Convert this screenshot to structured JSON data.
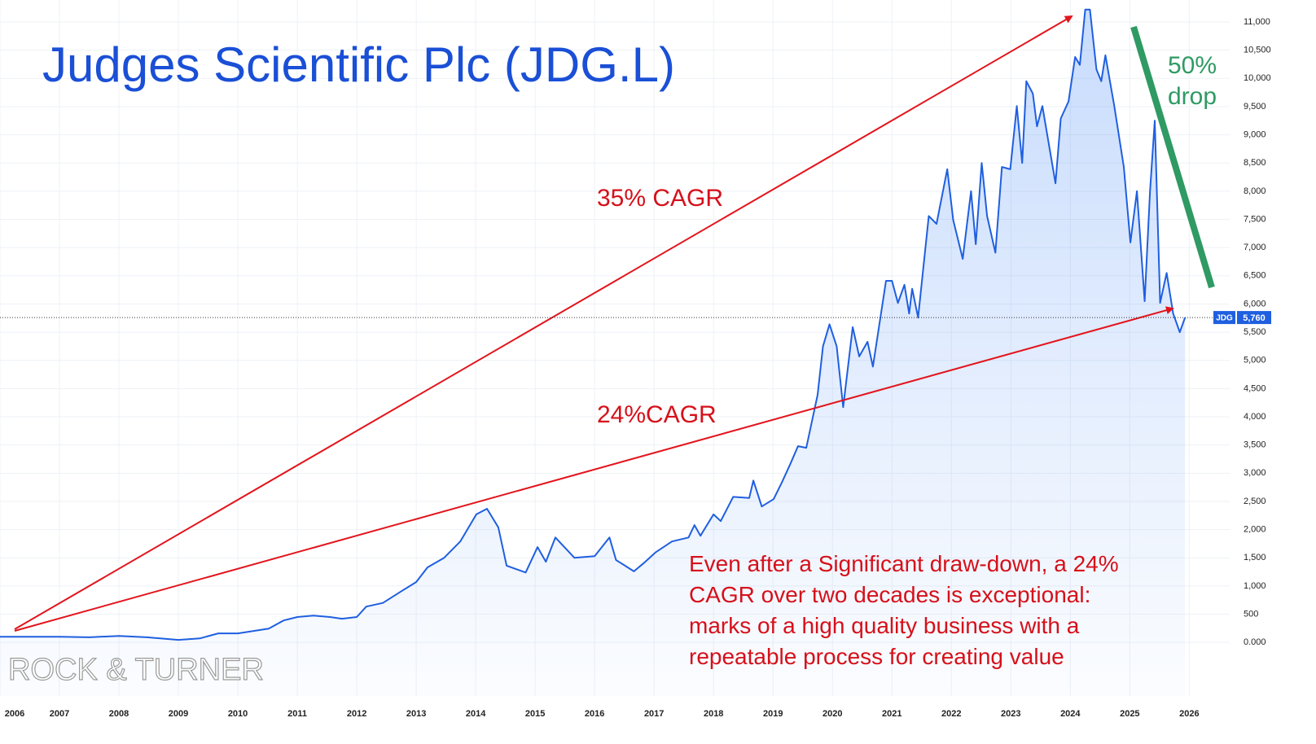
{
  "chart_data": {
    "type": "area-line",
    "title": "Judges Scientific Plc (JDG.L)",
    "annotations": {
      "upper": "35% CAGR",
      "lower": "24%CAGR",
      "drop": [
        "50%",
        "drop"
      ],
      "note": [
        "Even after a Significant draw-down, a 24%",
        "CAGR over two decades is exceptional:",
        "marks of a high quality business with a",
        "repeatable process for creating value"
      ],
      "watermark": "ROCK & TURNER"
    },
    "color": "#1f5fe0",
    "grid": true,
    "xlim": [
      2006,
      2026.68
    ],
    "xticks": [
      2006,
      2007,
      2008,
      2009,
      2010,
      2011,
      2012,
      2013,
      2014,
      2015,
      2016,
      2017,
      2018,
      2019,
      2020,
      2021,
      2022,
      2023,
      2024,
      2025,
      2026
    ],
    "ylim": [
      -950,
      11390
    ],
    "yticks": [
      {
        "value": 0,
        "label": "0.000"
      },
      500,
      {
        "value": 1000,
        "label": "1,000"
      },
      {
        "value": 1500,
        "label": "1,500"
      },
      {
        "value": 2000,
        "label": "2,000"
      },
      {
        "value": 2500,
        "label": "2,500"
      },
      {
        "value": 3000,
        "label": "3,000"
      },
      {
        "value": 3500,
        "label": "3,500"
      },
      {
        "value": 4000,
        "label": "4,000"
      },
      {
        "value": 4500,
        "label": "4,500"
      },
      {
        "value": 5000,
        "label": "5,000"
      },
      {
        "value": 5500,
        "label": "5,500"
      },
      {
        "value": 6000,
        "label": "6,000"
      },
      {
        "value": 6500,
        "label": "6,500"
      },
      {
        "value": 7000,
        "label": "7,000"
      },
      {
        "value": 7500,
        "label": "7,500"
      },
      {
        "value": 8000,
        "label": "8,000"
      },
      {
        "value": 8500,
        "label": "8,500"
      },
      {
        "value": 9000,
        "label": "9,000"
      },
      {
        "value": 9500,
        "label": "9,500"
      },
      {
        "value": 10000,
        "label": "10,000"
      },
      {
        "value": 10500,
        "label": "10,500"
      },
      {
        "value": 11000,
        "label": "11,000"
      }
    ],
    "price_label": {
      "symbol": "JDG",
      "value": 5760,
      "label": "5,760"
    },
    "x": [
      2006.0,
      2007.0,
      2007.5,
      2008.0,
      2008.47,
      2009.0,
      2009.36,
      2009.67,
      2010.0,
      2010.52,
      2010.77,
      2011.0,
      2011.27,
      2011.55,
      2011.75,
      2012.0,
      2012.16,
      2012.44,
      2012.71,
      2013.0,
      2013.19,
      2013.47,
      2013.74,
      2014.01,
      2014.19,
      2014.38,
      2014.52,
      2014.84,
      2015.04,
      2015.18,
      2015.34,
      2015.66,
      2016.0,
      2016.25,
      2016.36,
      2016.66,
      2016.82,
      2017.03,
      2017.3,
      2017.58,
      2017.68,
      2017.78,
      2018.0,
      2018.12,
      2018.33,
      2018.6,
      2018.67,
      2018.81,
      2019.01,
      2019.15,
      2019.29,
      2019.42,
      2019.56,
      2019.75,
      2019.84,
      2019.95,
      2020.07,
      2020.18,
      2020.34,
      2020.45,
      2020.59,
      2020.68,
      2020.9,
      2021.0,
      2021.1,
      2021.21,
      2021.29,
      2021.34,
      2021.44,
      2021.62,
      2021.75,
      2021.93,
      2022.03,
      2022.19,
      2022.33,
      2022.41,
      2022.51,
      2022.6,
      2022.74,
      2022.85,
      2022.99,
      2023.1,
      2023.19,
      2023.26,
      2023.37,
      2023.44,
      2023.53,
      2023.75,
      2023.84,
      2023.97,
      2024.08,
      2024.16,
      2024.25,
      2024.33,
      2024.44,
      2024.52,
      2024.59,
      2024.74,
      2024.9,
      2025.01,
      2025.12,
      2025.25,
      2025.34,
      2025.42,
      2025.51,
      2025.62,
      2025.73,
      2025.84,
      2025.93
    ],
    "values": [
      100,
      100,
      90,
      115,
      90,
      45,
      70,
      160,
      160,
      245,
      390,
      450,
      475,
      450,
      420,
      450,
      635,
      700,
      880,
      1070,
      1330,
      1500,
      1790,
      2270,
      2370,
      2040,
      1360,
      1240,
      1690,
      1430,
      1860,
      1500,
      1530,
      1860,
      1460,
      1260,
      1400,
      1600,
      1790,
      1860,
      2080,
      1890,
      2270,
      2150,
      2580,
      2560,
      2870,
      2410,
      2540,
      2840,
      3160,
      3480,
      3450,
      4390,
      5250,
      5640,
      5250,
      4170,
      5590,
      5070,
      5330,
      4890,
      6410,
      6410,
      6020,
      6340,
      5830,
      6270,
      5760,
      7560,
      7420,
      8390,
      7490,
      6800,
      8000,
      7060,
      8500,
      7560,
      6910,
      8430,
      8390,
      9510,
      8500,
      9950,
      9730,
      9150,
      9510,
      8140,
      9290,
      9590,
      10380,
      10240,
      11220,
      11220,
      10160,
      9950,
      10410,
      9510,
      8430,
      7090,
      8000,
      6050,
      8000,
      9250,
      6020,
      6550,
      5830,
      5500,
      5760
    ]
  }
}
